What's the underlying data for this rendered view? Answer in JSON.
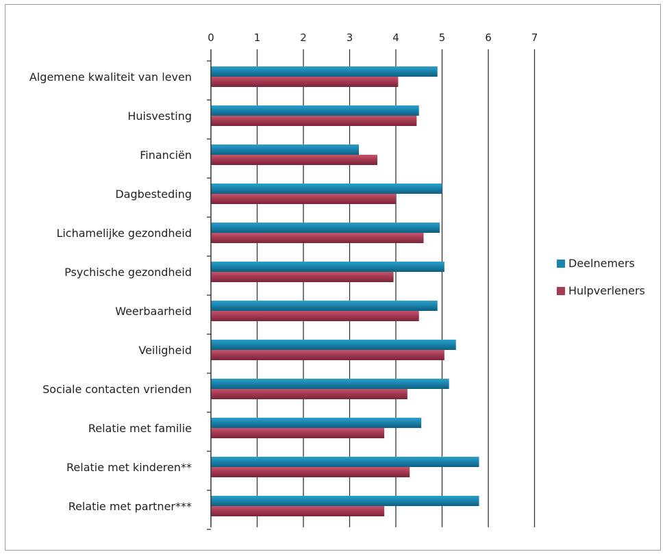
{
  "chart_data": {
    "type": "bar",
    "orientation": "horizontal",
    "categories": [
      "Algemene kwaliteit van leven",
      "Huisvesting",
      "Financiën",
      "Dagbesteding",
      "Lichamelijke gezondheid",
      "Psychische gezondheid",
      "Weerbaarheid",
      "Veiligheid",
      "Sociale contacten vrienden",
      "Relatie met familie",
      "Relatie met kinderen**",
      "Relatie met partner***"
    ],
    "series": [
      {
        "name": "Deelnemers",
        "color": "#1a84ad",
        "values": [
          4.9,
          4.5,
          3.2,
          5.0,
          4.95,
          5.05,
          4.9,
          5.3,
          5.15,
          4.55,
          5.8,
          5.8
        ]
      },
      {
        "name": "Hulpverleners",
        "color": "#a63a52",
        "values": [
          4.05,
          4.45,
          3.6,
          4.0,
          4.6,
          3.95,
          4.5,
          5.05,
          4.25,
          3.75,
          4.3,
          3.75
        ]
      }
    ],
    "xticks": [
      "0",
      "1",
      "2",
      "3",
      "4",
      "5",
      "6",
      "7"
    ],
    "xlim": [
      0,
      7
    ],
    "axis_position": "top",
    "grid": "vertical",
    "legend": "right"
  }
}
